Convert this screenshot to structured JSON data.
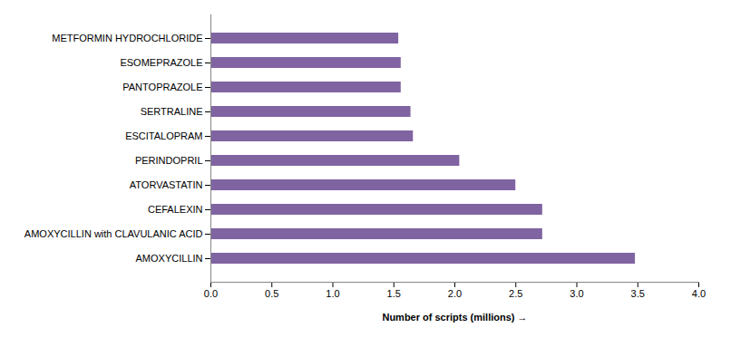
{
  "chart_data": {
    "type": "bar",
    "orientation": "horizontal",
    "x_label": "Number of scripts (millions)",
    "categories": [
      "METFORMIN HYDROCHLORIDE",
      "ESOMEPRAZOLE",
      "PANTOPRAZOLE",
      "SERTRALINE",
      "ESCITALOPRAM",
      "PERINDOPRIL",
      "ATORVASTATIN",
      "CEFALEXIN",
      "AMOXYCILLIN with CLAVULANIC ACID",
      "AMOXYCILLIN"
    ],
    "values": [
      1.54,
      1.56,
      1.56,
      1.64,
      1.66,
      2.04,
      2.5,
      2.72,
      2.72,
      3.48
    ],
    "color": "#8064a2",
    "xlim": [
      0,
      4
    ],
    "xticks": [
      {
        "value": 0,
        "label": "0.0"
      },
      0.5,
      {
        "value": 1,
        "label": "1.0"
      },
      1.5,
      {
        "value": 2,
        "label": "2.0"
      },
      2.5,
      {
        "value": 3,
        "label": "3.0"
      },
      3.5,
      {
        "value": 4,
        "label": "4.0"
      }
    ],
    "grid": false
  }
}
